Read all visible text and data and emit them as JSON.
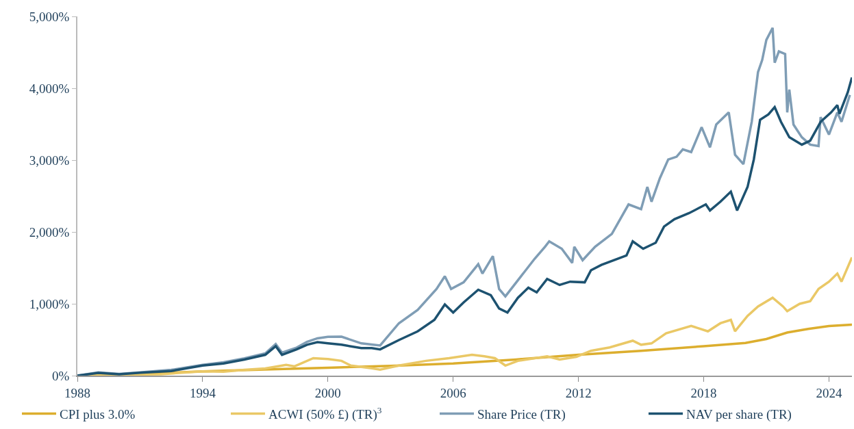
{
  "chart_data": {
    "type": "line",
    "xlim": [
      1988,
      2025.1
    ],
    "xticks": [
      1988,
      1994,
      2000,
      2006,
      2012,
      2018,
      2024
    ],
    "ylim": [
      0,
      5000
    ],
    "yticks": [
      {
        "value": 0,
        "label": "0%"
      },
      {
        "value": 1000,
        "label": "1,000%"
      },
      {
        "value": 2000,
        "label": "2,000%"
      },
      {
        "value": 3000,
        "label": "3,000%"
      },
      {
        "value": 4000,
        "label": "4,000%"
      },
      {
        "value": 5000,
        "label": "5,000%"
      }
    ],
    "legend": "bottom",
    "marker": "none",
    "line_style": "solid",
    "series": [
      {
        "name": "CPI plus 3.0%",
        "color": "#dcae2e",
        "x": [
          1988,
          1991,
          1994,
          1997,
          2000,
          2003,
          2006,
          2009,
          2012,
          2015,
          2018,
          2020,
          2021,
          2022,
          2023,
          2024,
          2025.1
        ],
        "values": [
          0,
          25,
          60,
          85,
          110,
          135,
          170,
          225,
          290,
          345,
          410,
          455,
          510,
          600,
          650,
          690,
          710
        ]
      },
      {
        "name": "ACWI (50% £) (TR)$^{3}$",
        "color": "#eac866",
        "x": [
          1988,
          1990,
          1992,
          1993,
          1994,
          1995,
          1996,
          1997,
          1998,
          1998.4,
          1999.3,
          2000,
          2000.65,
          2001.1,
          2002.1,
          2002.5,
          2003.4,
          2004.7,
          2005.8,
          2006.9,
          2007.5,
          2008,
          2008.5,
          2009.1,
          2010.5,
          2011.1,
          2011.9,
          2012.6,
          2013.5,
          2014.6,
          2015.0,
          2015.5,
          2016.2,
          2017.4,
          2018.2,
          2018.8,
          2019.3,
          2019.5,
          2020.1,
          2020.6,
          2021.3,
          2021.8,
          2022.0,
          2022.6,
          2023.1,
          2023.5,
          2024.0,
          2024.4,
          2024.6,
          2025.1
        ],
        "values": [
          0,
          10,
          20,
          40,
          60,
          55,
          80,
          100,
          150,
          130,
          243,
          230,
          206,
          140,
          103,
          84,
          140,
          206,
          243,
          290,
          269,
          243,
          140,
          206,
          269,
          224,
          262,
          346,
          393,
          486,
          430,
          449,
          589,
          692,
          617,
          729,
          776,
          617,
          832,
          963,
          1084,
          963,
          897,
          1000,
          1037,
          1206,
          1308,
          1421,
          1308,
          1645
        ]
      },
      {
        "name": "Share Price (TR)",
        "color": "#7f9db5",
        "x": [
          1988,
          1989,
          1990,
          1991,
          1992.5,
          1994,
          1995,
          1996,
          1997,
          1997.5,
          1997.8,
          1998.5,
          1999,
          1999.5,
          2000,
          2000.65,
          2001.6,
          2002.5,
          2003.4,
          2004.3,
          2005.2,
          2005.6,
          2005.9,
          2006.5,
          2007.2,
          2007.4,
          2007.9,
          2008.2,
          2008.5,
          2009.1,
          2009.9,
          2010.4,
          2010.6,
          2011.2,
          2011.7,
          2011.8,
          2012.2,
          2012.8,
          2013.6,
          2014.4,
          2015.0,
          2015.3,
          2015.5,
          2015.9,
          2016.3,
          2016.7,
          2017.0,
          2017.4,
          2017.9,
          2018.3,
          2018.6,
          2019.2,
          2019.5,
          2019.9,
          2020.3,
          2020.6,
          2020.8,
          2021.0,
          2021.3,
          2021.4,
          2021.6,
          2021.9,
          2022.0,
          2022.1,
          2022.3,
          2022.7,
          2023.1,
          2023.5,
          2023.6,
          2024.0,
          2024.4,
          2024.6,
          2025.0
        ],
        "values": [
          0,
          45,
          25,
          45,
          80,
          150,
          185,
          240,
          310,
          440,
          320,
          390,
          470,
          520,
          540,
          542,
          449,
          420,
          729,
          916,
          1206,
          1383,
          1206,
          1299,
          1551,
          1421,
          1664,
          1206,
          1103,
          1327,
          1626,
          1794,
          1869,
          1766,
          1570,
          1794,
          1607,
          1794,
          1972,
          2383,
          2318,
          2626,
          2421,
          2748,
          3009,
          3047,
          3150,
          3112,
          3458,
          3178,
          3495,
          3664,
          3075,
          2944,
          3533,
          4224,
          4393,
          4673,
          4841,
          4355,
          4514,
          4477,
          3664,
          3981,
          3495,
          3318,
          3215,
          3196,
          3598,
          3355,
          3664,
          3533,
          3907
        ]
      },
      {
        "name": "NAV per share (TR)",
        "color": "#1d5270",
        "x": [
          1988,
          1989,
          1990,
          1991,
          1992.5,
          1994,
          1995,
          1996,
          1997,
          1997.5,
          1997.8,
          1998.5,
          1999,
          1999.5,
          2000,
          2000.65,
          2001.6,
          2002.1,
          2002.5,
          2003.4,
          2004.3,
          2005.1,
          2005.6,
          2006,
          2006.5,
          2007.2,
          2007.8,
          2008.2,
          2008.6,
          2009.1,
          2009.6,
          2010,
          2010.5,
          2011.1,
          2011.6,
          2012.3,
          2012.6,
          2013.1,
          2014.3,
          2014.6,
          2015.1,
          2015.7,
          2016.1,
          2016.6,
          2017.3,
          2018.1,
          2018.3,
          2018.8,
          2019.3,
          2019.6,
          2020.1,
          2020.4,
          2020.7,
          2021.1,
          2021.4,
          2021.7,
          2022.1,
          2022.7,
          2023.1,
          2023.6,
          2024.1,
          2024.4,
          2024.5,
          2024.9,
          2025.1
        ],
        "values": [
          0,
          37,
          20,
          40,
          65,
          140,
          170,
          224,
          290,
          410,
          290,
          365,
          430,
          467,
          450,
          430,
          383,
          383,
          365,
          495,
          617,
          776,
          991,
          879,
          1019,
          1196,
          1121,
          935,
          879,
          1084,
          1224,
          1159,
          1346,
          1262,
          1308,
          1299,
          1467,
          1542,
          1673,
          1869,
          1766,
          1850,
          2075,
          2178,
          2262,
          2383,
          2299,
          2421,
          2561,
          2299,
          2626,
          3009,
          3561,
          3636,
          3738,
          3533,
          3318,
          3215,
          3271,
          3533,
          3664,
          3766,
          3645,
          3944,
          4150
        ]
      }
    ]
  }
}
